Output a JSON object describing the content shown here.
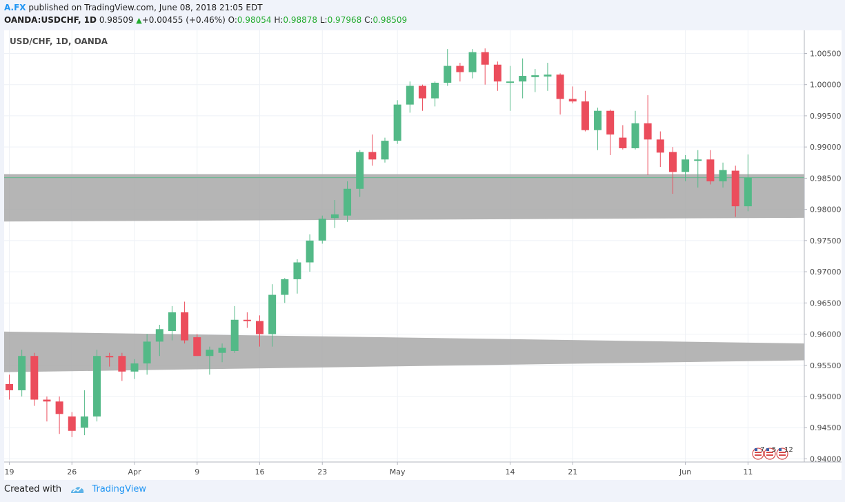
{
  "header": {
    "author": "A.FX",
    "published_text": "published on TradingView.com, June 08, 2018 21:05 EDT",
    "symbol": "OANDA:USDCHF, 1D",
    "last": "0.98509",
    "change": "+0.00455 (+0.46%)",
    "o_label": "O:",
    "o": "0.98054",
    "h_label": "H:",
    "h": "0.98878",
    "l_label": "L:",
    "l": "0.97968",
    "c_label": "C:",
    "c": "0.98509"
  },
  "footer": {
    "created_with": "Created with",
    "brand": "TradingView"
  },
  "events": {
    "labels": [
      "7",
      "5",
      "12"
    ]
  },
  "colors": {
    "up": "#53b987",
    "down": "#eb4d5c",
    "zone": "#a8a8a8",
    "grid": "#eef1f6",
    "axis": "#b2b5be",
    "text": "#4a4a4a",
    "line": "#53b987"
  },
  "chart_data": {
    "type": "candlestick",
    "title": "USD/CHF, 1D, OANDA",
    "ylim": [
      0.9395,
      1.0087
    ],
    "y_ticks": [
      "0.94000",
      "0.94500",
      "0.95000",
      "0.95500",
      "0.96000",
      "0.96500",
      "0.97000",
      "0.97500",
      "0.98000",
      "0.98500",
      "0.99000",
      "0.99500",
      "1.00000",
      "1.00500"
    ],
    "x_ticks": [
      {
        "index": 0,
        "label": "19"
      },
      {
        "index": 5,
        "label": "26"
      },
      {
        "index": 10,
        "label": "Apr"
      },
      {
        "index": 15,
        "label": "9"
      },
      {
        "index": 20,
        "label": "16"
      },
      {
        "index": 25,
        "label": "23"
      },
      {
        "index": 31,
        "label": "May"
      },
      {
        "index": 40,
        "label": "14"
      },
      {
        "index": 45,
        "label": "21"
      },
      {
        "index": 54,
        "label": "Jun"
      },
      {
        "index": 59,
        "label": "11"
      }
    ],
    "last_price": 0.98509,
    "candles": [
      {
        "o": 0.952,
        "h": 0.9535,
        "l": 0.9495,
        "c": 0.951
      },
      {
        "o": 0.951,
        "h": 0.9575,
        "l": 0.95,
        "c": 0.9565
      },
      {
        "o": 0.9565,
        "h": 0.957,
        "l": 0.9485,
        "c": 0.9495
      },
      {
        "o": 0.9495,
        "h": 0.95,
        "l": 0.946,
        "c": 0.9492
      },
      {
        "o": 0.9492,
        "h": 0.95,
        "l": 0.944,
        "c": 0.9472
      },
      {
        "o": 0.9468,
        "h": 0.9475,
        "l": 0.9435,
        "c": 0.9445
      },
      {
        "o": 0.945,
        "h": 0.951,
        "l": 0.9438,
        "c": 0.9468
      },
      {
        "o": 0.9468,
        "h": 0.9575,
        "l": 0.946,
        "c": 0.9565
      },
      {
        "o": 0.9565,
        "h": 0.957,
        "l": 0.9548,
        "c": 0.9563
      },
      {
        "o": 0.9565,
        "h": 0.957,
        "l": 0.9525,
        "c": 0.954
      },
      {
        "o": 0.954,
        "h": 0.956,
        "l": 0.9528,
        "c": 0.9553
      },
      {
        "o": 0.9553,
        "h": 0.96,
        "l": 0.9535,
        "c": 0.9588
      },
      {
        "o": 0.9588,
        "h": 0.9615,
        "l": 0.9565,
        "c": 0.9608
      },
      {
        "o": 0.9605,
        "h": 0.9645,
        "l": 0.959,
        "c": 0.9635
      },
      {
        "o": 0.9635,
        "h": 0.9652,
        "l": 0.9585,
        "c": 0.959
      },
      {
        "o": 0.9595,
        "h": 0.96,
        "l": 0.9565,
        "c": 0.9565
      },
      {
        "o": 0.9565,
        "h": 0.958,
        "l": 0.9535,
        "c": 0.9575
      },
      {
        "o": 0.957,
        "h": 0.9585,
        "l": 0.9555,
        "c": 0.9578
      },
      {
        "o": 0.9573,
        "h": 0.9645,
        "l": 0.957,
        "c": 0.9623
      },
      {
        "o": 0.9623,
        "h": 0.9635,
        "l": 0.961,
        "c": 0.9621
      },
      {
        "o": 0.9621,
        "h": 0.963,
        "l": 0.958,
        "c": 0.96
      },
      {
        "o": 0.96,
        "h": 0.968,
        "l": 0.958,
        "c": 0.9663
      },
      {
        "o": 0.9663,
        "h": 0.969,
        "l": 0.965,
        "c": 0.9688
      },
      {
        "o": 0.9688,
        "h": 0.972,
        "l": 0.9665,
        "c": 0.9715
      },
      {
        "o": 0.9715,
        "h": 0.976,
        "l": 0.97,
        "c": 0.975
      },
      {
        "o": 0.975,
        "h": 0.979,
        "l": 0.9745,
        "c": 0.9785
      },
      {
        "o": 0.9786,
        "h": 0.9815,
        "l": 0.977,
        "c": 0.9792
      },
      {
        "o": 0.979,
        "h": 0.9845,
        "l": 0.978,
        "c": 0.9833
      },
      {
        "o": 0.9833,
        "h": 0.9895,
        "l": 0.982,
        "c": 0.9892
      },
      {
        "o": 0.9892,
        "h": 0.992,
        "l": 0.987,
        "c": 0.988
      },
      {
        "o": 0.988,
        "h": 0.9915,
        "l": 0.9875,
        "c": 0.991
      },
      {
        "o": 0.991,
        "h": 0.9975,
        "l": 0.9905,
        "c": 0.9968
      },
      {
        "o": 0.9968,
        "h": 1.0005,
        "l": 0.9955,
        "c": 0.9998
      },
      {
        "o": 0.9998,
        "h": 1.0,
        "l": 0.9958,
        "c": 0.9978
      },
      {
        "o": 0.9978,
        "h": 1.0005,
        "l": 0.9965,
        "c": 1.0003
      },
      {
        "o": 1.0003,
        "h": 1.0057,
        "l": 0.9998,
        "c": 1.003
      },
      {
        "o": 1.003,
        "h": 1.0035,
        "l": 1.0005,
        "c": 1.002
      },
      {
        "o": 1.002,
        "h": 1.0057,
        "l": 1.001,
        "c": 1.0052
      },
      {
        "o": 1.0052,
        "h": 1.0058,
        "l": 1.0,
        "c": 1.0032
      },
      {
        "o": 1.0032,
        "h": 1.0037,
        "l": 0.999,
        "c": 1.0005
      },
      {
        "o": 1.0005,
        "h": 1.003,
        "l": 0.9958,
        "c": 1.0005
      },
      {
        "o": 1.0005,
        "h": 1.0042,
        "l": 0.9978,
        "c": 1.0014
      },
      {
        "o": 1.0012,
        "h": 1.0025,
        "l": 0.9988,
        "c": 1.0015
      },
      {
        "o": 1.0013,
        "h": 1.0035,
        "l": 0.999,
        "c": 1.0016
      },
      {
        "o": 1.0016,
        "h": 1.0018,
        "l": 0.9952,
        "c": 0.9977
      },
      {
        "o": 0.9977,
        "h": 0.9997,
        "l": 0.997,
        "c": 0.9973
      },
      {
        "o": 0.9973,
        "h": 0.999,
        "l": 0.9925,
        "c": 0.9927
      },
      {
        "o": 0.9927,
        "h": 0.9963,
        "l": 0.9895,
        "c": 0.9958
      },
      {
        "o": 0.9958,
        "h": 0.996,
        "l": 0.9887,
        "c": 0.992
      },
      {
        "o": 0.9915,
        "h": 0.9935,
        "l": 0.9896,
        "c": 0.9898
      },
      {
        "o": 0.9898,
        "h": 0.9958,
        "l": 0.9896,
        "c": 0.9938
      },
      {
        "o": 0.9938,
        "h": 0.9983,
        "l": 0.9855,
        "c": 0.9912
      },
      {
        "o": 0.9912,
        "h": 0.9925,
        "l": 0.9868,
        "c": 0.9891
      },
      {
        "o": 0.9892,
        "h": 0.99,
        "l": 0.9825,
        "c": 0.986
      },
      {
        "o": 0.986,
        "h": 0.9887,
        "l": 0.9845,
        "c": 0.988
      },
      {
        "o": 0.988,
        "h": 0.9895,
        "l": 0.9835,
        "c": 0.988
      },
      {
        "o": 0.988,
        "h": 0.9895,
        "l": 0.984,
        "c": 0.9845
      },
      {
        "o": 0.9845,
        "h": 0.9875,
        "l": 0.9835,
        "c": 0.9863
      },
      {
        "o": 0.9862,
        "h": 0.987,
        "l": 0.9788,
        "c": 0.9805
      },
      {
        "o": 0.9805,
        "h": 0.9888,
        "l": 0.9797,
        "c": 0.9851
      }
    ],
    "zones": [
      {
        "name": "upper-zone",
        "x0": -1,
        "x1": 64,
        "top0": 0.98565,
        "top1": 0.98565,
        "bot0": 0.97805,
        "bot1": 0.97865
      },
      {
        "name": "lower-zone",
        "x0": -1,
        "x1": 64,
        "top0": 0.9604,
        "top1": 0.9585,
        "bot0": 0.9539,
        "bot1": 0.9558
      }
    ]
  }
}
